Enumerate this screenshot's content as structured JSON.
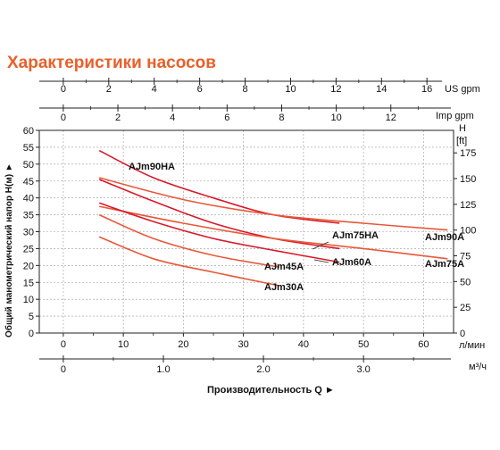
{
  "title": "Характеристики насосов",
  "colors": {
    "accent": "#e8602a",
    "curve_dark": "#d81a2a",
    "curve_light": "#e8583a",
    "grid": "#9a9a9a"
  },
  "chart_data": {
    "type": "line",
    "title": "Характеристики насосов",
    "xlabel": "Производительность Q ►",
    "ylabel": "Общий манометрический напор H(м) ►",
    "xlim": [
      -4,
      65
    ],
    "ylim": [
      0,
      60
    ],
    "grid": true,
    "axes": {
      "left": {
        "unit_label": "",
        "ticks": [
          "0",
          "5",
          "10",
          "15",
          "20",
          "25",
          "30",
          "35",
          "40",
          "45",
          "50",
          "55",
          "60"
        ]
      },
      "right": {
        "title": "H",
        "unit_label": "[ft]",
        "ticks": [
          "0",
          "25",
          "50",
          "75",
          "100",
          "125",
          "150",
          "175"
        ]
      },
      "bottom": {
        "unit_label": "л/мин",
        "ticks": [
          "0",
          "10",
          "20",
          "30",
          "40",
          "50",
          "60"
        ]
      },
      "bottom2": {
        "unit_label": "м³/ч",
        "ticks": [
          "0",
          "1.0",
          "2.0",
          "3.0"
        ]
      },
      "top_us": {
        "unit_label": "US gpm",
        "ticks": [
          "0",
          "2",
          "4",
          "6",
          "8",
          "10",
          "12",
          "14",
          "16"
        ]
      },
      "top_imp": {
        "unit_label": "Imp gpm",
        "ticks": [
          "0",
          "2",
          "4",
          "6",
          "8",
          "10",
          "12"
        ]
      }
    },
    "series": [
      {
        "name": "AJm90HA",
        "label": "AJm90HA",
        "color": "#d81a2a",
        "x": [
          6,
          15,
          25,
          35,
          46
        ],
        "y": [
          54,
          46,
          40,
          35,
          32.5
        ]
      },
      {
        "name": "AJm90A",
        "label": "AJm90A",
        "color": "#e8583a",
        "x": [
          6,
          20,
          35,
          50,
          64
        ],
        "y": [
          46,
          39.5,
          35,
          32.5,
          30.5
        ]
      },
      {
        "name": "AJm75HA",
        "label": "AJm75HA",
        "color": "#d81a2a",
        "x": [
          6,
          15,
          25,
          35,
          46
        ],
        "y": [
          45.5,
          39,
          32.5,
          28,
          25
        ]
      },
      {
        "name": "AJm75A",
        "label": "AJm75A",
        "color": "#e8583a",
        "x": [
          6,
          20,
          35,
          50,
          64
        ],
        "y": [
          37.5,
          32.5,
          28,
          25,
          22
        ]
      },
      {
        "name": "AJm60A",
        "label": "AJm60A",
        "color": "#d81a2a",
        "x": [
          6,
          15,
          25,
          35,
          46
        ],
        "y": [
          38.5,
          33,
          28,
          24.5,
          21
        ]
      },
      {
        "name": "AJm45A",
        "label": "AJm45A",
        "color": "#e8583a",
        "x": [
          6,
          15,
          25,
          36
        ],
        "y": [
          35,
          28,
          23,
          19.5
        ]
      },
      {
        "name": "AJm30A",
        "label": "AJm30A",
        "color": "#e8583a",
        "x": [
          6,
          15,
          25,
          36
        ],
        "y": [
          28.5,
          22,
          18,
          14
        ]
      }
    ]
  }
}
